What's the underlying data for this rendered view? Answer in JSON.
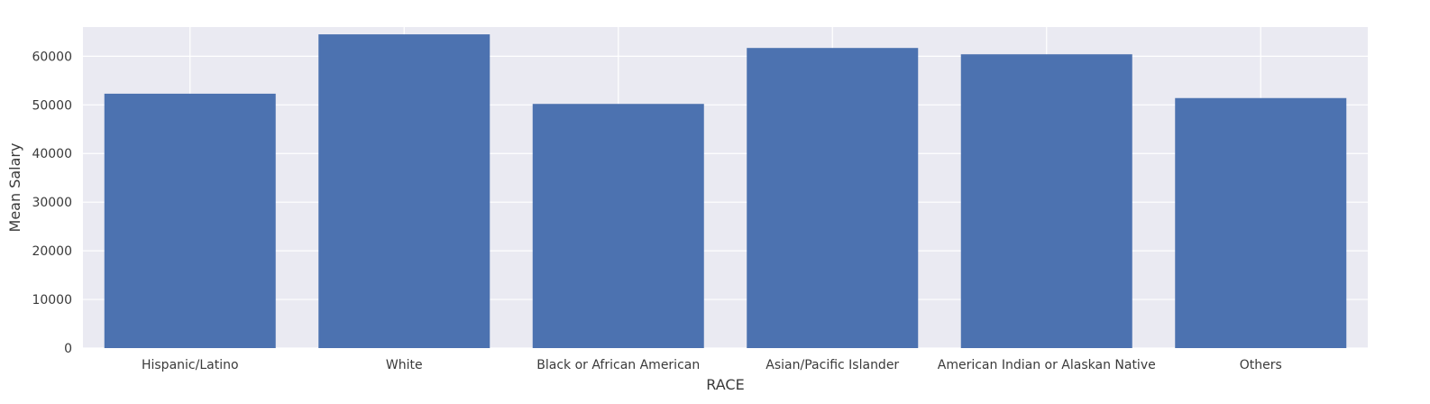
{
  "chart_data": {
    "type": "bar",
    "categories": [
      "Hispanic/Latino",
      "White",
      "Black or African American",
      "Asian/Pacific Islander",
      "American Indian or Alaskan Native",
      "Others"
    ],
    "values": [
      52300,
      64500,
      50200,
      61700,
      60400,
      51400
    ],
    "xlabel": "RACE",
    "ylabel": "Mean Salary",
    "ylim": [
      0,
      66000
    ],
    "yticks": [
      0,
      10000,
      20000,
      30000,
      40000,
      50000,
      60000
    ],
    "grid": true,
    "bar_color": "#4c72b0",
    "background_color": "#eaeaf2",
    "grid_color": "#ffffff"
  }
}
